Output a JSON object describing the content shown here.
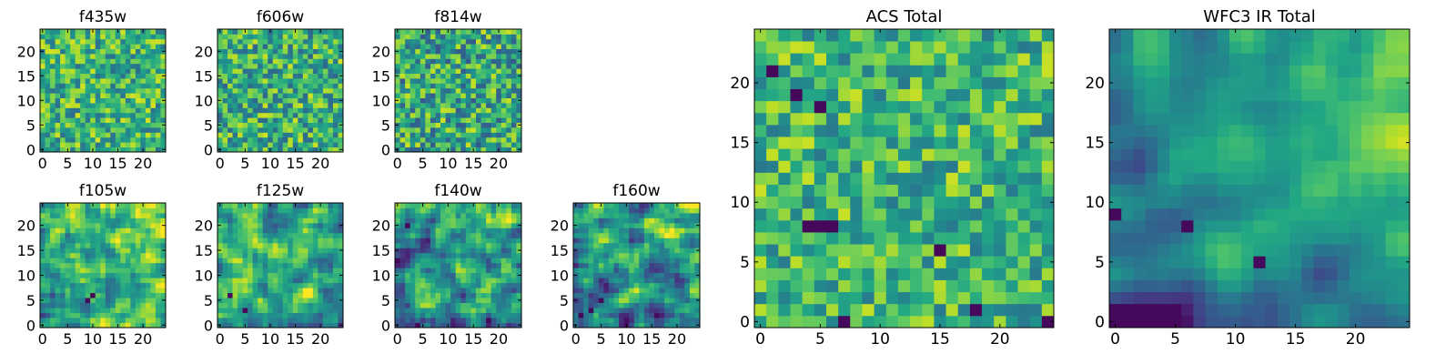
{
  "figure": {
    "background": "#ffffff",
    "colormap": "viridis"
  },
  "chart_data": [
    {
      "type": "heatmap",
      "title": "f435w",
      "grid_size": [
        25,
        25
      ],
      "xlim": [
        0,
        24
      ],
      "ylim": [
        0,
        24
      ],
      "xticks": [
        0,
        5,
        10,
        15,
        20
      ],
      "yticks": [
        0,
        5,
        10,
        15,
        20
      ],
      "colormap": "viridis",
      "value_range": [
        0,
        1
      ],
      "mean": 0.65,
      "noise": 0.33,
      "smoothness": 0,
      "trend": [
        0,
        0
      ],
      "seed": 11,
      "dark_cells": []
    },
    {
      "type": "heatmap",
      "title": "f606w",
      "grid_size": [
        25,
        25
      ],
      "xlim": [
        0,
        24
      ],
      "ylim": [
        0,
        24
      ],
      "xticks": [
        0,
        5,
        10,
        15,
        20
      ],
      "yticks": [
        0,
        5,
        10,
        15,
        20
      ],
      "colormap": "viridis",
      "value_range": [
        0,
        1
      ],
      "mean": 0.63,
      "noise": 0.35,
      "smoothness": 0,
      "trend": [
        0,
        0
      ],
      "seed": 23,
      "dark_cells": []
    },
    {
      "type": "heatmap",
      "title": "f814w",
      "grid_size": [
        25,
        25
      ],
      "xlim": [
        0,
        24
      ],
      "ylim": [
        0,
        24
      ],
      "xticks": [
        0,
        5,
        10,
        15,
        20
      ],
      "yticks": [
        0,
        5,
        10,
        15,
        20
      ],
      "colormap": "viridis",
      "value_range": [
        0,
        1
      ],
      "mean": 0.6,
      "noise": 0.38,
      "smoothness": 0,
      "trend": [
        0,
        0
      ],
      "seed": 37,
      "dark_cells": []
    },
    {
      "type": "heatmap",
      "title": "f105w",
      "grid_size": [
        25,
        25
      ],
      "xlim": [
        0,
        24
      ],
      "ylim": [
        0,
        24
      ],
      "xticks": [
        0,
        5,
        10,
        15,
        20
      ],
      "yticks": [
        0,
        5,
        10,
        15,
        20
      ],
      "colormap": "viridis",
      "value_range": [
        0,
        1
      ],
      "mean": 0.66,
      "noise": 0.28,
      "smoothness": 1,
      "trend": [
        0.1,
        0.1
      ],
      "seed": 41,
      "dark_cells": [
        [
          9,
          5
        ],
        [
          10,
          6
        ]
      ]
    },
    {
      "type": "heatmap",
      "title": "f125w",
      "grid_size": [
        25,
        25
      ],
      "xlim": [
        0,
        24
      ],
      "ylim": [
        0,
        24
      ],
      "xticks": [
        0,
        5,
        10,
        15,
        20
      ],
      "yticks": [
        0,
        5,
        10,
        15,
        20
      ],
      "colormap": "viridis",
      "value_range": [
        0,
        1
      ],
      "mean": 0.62,
      "noise": 0.32,
      "smoothness": 1,
      "trend": [
        0.05,
        0.08
      ],
      "seed": 53,
      "dark_cells": [
        [
          2,
          6
        ],
        [
          5,
          3
        ]
      ]
    },
    {
      "type": "heatmap",
      "title": "f140w",
      "grid_size": [
        25,
        25
      ],
      "xlim": [
        0,
        24
      ],
      "ylim": [
        0,
        24
      ],
      "xticks": [
        0,
        5,
        10,
        15,
        20
      ],
      "yticks": [
        0,
        5,
        10,
        15,
        20
      ],
      "colormap": "viridis",
      "value_range": [
        0,
        1
      ],
      "mean": 0.55,
      "noise": 0.34,
      "smoothness": 1,
      "trend": [
        0.1,
        0.12
      ],
      "seed": 67,
      "dark_cells": [
        [
          2,
          20
        ],
        [
          4,
          0
        ]
      ]
    },
    {
      "type": "heatmap",
      "title": "f160w",
      "grid_size": [
        25,
        25
      ],
      "xlim": [
        0,
        24
      ],
      "ylim": [
        0,
        24
      ],
      "xticks": [
        0,
        5,
        10,
        15,
        20
      ],
      "yticks": [
        0,
        5,
        10,
        15,
        20
      ],
      "colormap": "viridis",
      "value_range": [
        0,
        1
      ],
      "mean": 0.5,
      "noise": 0.34,
      "smoothness": 1,
      "trend": [
        0.15,
        0.2
      ],
      "seed": 71,
      "dark_cells": [
        [
          3,
          3
        ],
        [
          5,
          5
        ],
        [
          1,
          2
        ]
      ]
    },
    {
      "type": "heatmap",
      "title": "ACS Total",
      "grid_size": [
        25,
        25
      ],
      "xlim": [
        0,
        24
      ],
      "ylim": [
        0,
        24
      ],
      "xticks": [
        0,
        5,
        10,
        15,
        20
      ],
      "yticks": [
        0,
        5,
        10,
        15,
        20
      ],
      "colormap": "viridis",
      "value_range": [
        0,
        1
      ],
      "mean": 0.66,
      "noise": 0.3,
      "smoothness": 0,
      "trend": [
        0,
        0
      ],
      "seed": 83,
      "dark_cells": [
        [
          1,
          21
        ],
        [
          3,
          19
        ],
        [
          5,
          18
        ],
        [
          4,
          8
        ],
        [
          5,
          8
        ],
        [
          6,
          8
        ],
        [
          15,
          6
        ],
        [
          18,
          1
        ],
        [
          7,
          0
        ],
        [
          24,
          0
        ]
      ]
    },
    {
      "type": "heatmap",
      "title": "WFC3 IR Total",
      "grid_size": [
        25,
        25
      ],
      "xlim": [
        0,
        24
      ],
      "ylim": [
        0,
        24
      ],
      "xticks": [
        0,
        5,
        10,
        15,
        20
      ],
      "yticks": [
        0,
        5,
        10,
        15,
        20
      ],
      "colormap": "viridis",
      "value_range": [
        0,
        1
      ],
      "mean": 0.5,
      "noise": 0.22,
      "smoothness": 2,
      "trend": [
        0.2,
        0.25
      ],
      "seed": 97,
      "dark_cells": [
        [
          3,
          1
        ],
        [
          4,
          1
        ],
        [
          5,
          1
        ],
        [
          4,
          0
        ],
        [
          5,
          0
        ],
        [
          12,
          5
        ],
        [
          6,
          8
        ],
        [
          0,
          9
        ]
      ]
    }
  ]
}
